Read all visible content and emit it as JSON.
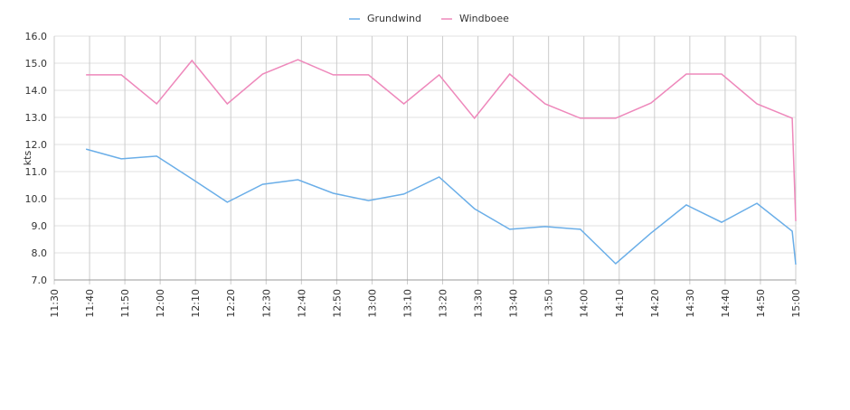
{
  "chart_data": {
    "type": "line",
    "y_label": "kts",
    "x": [
      "11:39",
      "11:49",
      "11:59",
      "12:09",
      "12:19",
      "12:29",
      "12:39",
      "12:49",
      "12:59",
      "13:09",
      "13:19",
      "13:29",
      "13:39",
      "13:49",
      "13:59",
      "14:09",
      "14:19",
      "14:29",
      "14:39",
      "14:49",
      "14:59",
      "15:00"
    ],
    "series": [
      {
        "name": "Grundwind",
        "color": "#6aaee8",
        "values": [
          11.83,
          11.47,
          11.57,
          10.73,
          9.87,
          10.53,
          10.7,
          10.2,
          9.93,
          10.17,
          10.8,
          9.63,
          8.87,
          8.97,
          8.87,
          7.6,
          8.73,
          9.77,
          9.13,
          9.83,
          8.8,
          7.57
        ]
      },
      {
        "name": "Windboee",
        "color": "#ee88bb",
        "values": [
          14.57,
          14.57,
          13.5,
          15.1,
          13.5,
          14.6,
          15.13,
          14.57,
          14.57,
          13.5,
          14.57,
          12.97,
          14.6,
          13.5,
          12.97,
          12.97,
          13.53,
          14.6,
          14.6,
          13.5,
          12.97,
          9.17
        ]
      }
    ],
    "xlim": [
      "11:30",
      "15:00"
    ],
    "xticks": [
      "11:30",
      "11:40",
      "11:50",
      "12:00",
      "12:10",
      "12:20",
      "12:30",
      "12:40",
      "12:50",
      "13:00",
      "13:10",
      "13:20",
      "13:30",
      "13:40",
      "13:50",
      "14:00",
      "14:10",
      "14:20",
      "14:30",
      "14:40",
      "14:50",
      "15:00"
    ],
    "ylim": [
      7,
      16
    ],
    "yticks": [
      {
        "value": 7,
        "label": "7.0"
      },
      {
        "value": 8,
        "label": "8.0"
      },
      {
        "value": 9,
        "label": "9.0"
      },
      {
        "value": 10,
        "label": "10.0"
      },
      {
        "value": 11,
        "label": "11.0"
      },
      {
        "value": 12,
        "label": "12.0"
      },
      {
        "value": 13,
        "label": "13.0"
      },
      {
        "value": 14,
        "label": "14.0"
      },
      {
        "value": 15,
        "label": "15.0"
      },
      {
        "value": 16,
        "label": "16.0"
      }
    ],
    "grid": true
  }
}
